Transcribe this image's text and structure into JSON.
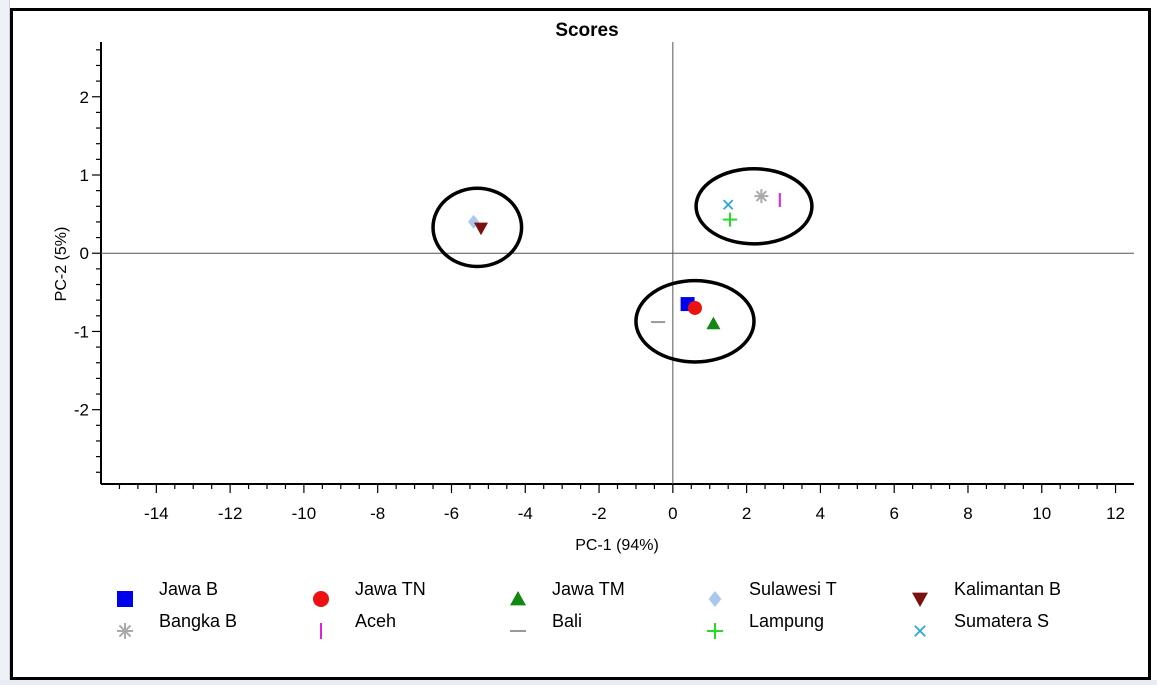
{
  "chart_data": {
    "type": "scatter",
    "title": "Scores",
    "xlabel": "PC-1 (94%)",
    "ylabel": "PC-2 (5%)",
    "xlim": [
      -15.5,
      12.5
    ],
    "ylim": [
      -2.95,
      2.7
    ],
    "xticks": [
      -14,
      -12,
      -10,
      -8,
      -6,
      -4,
      -2,
      0,
      2,
      4,
      6,
      8,
      10,
      12
    ],
    "yticks": [
      2,
      1,
      0,
      -1,
      -2
    ],
    "grid": false,
    "legend_position": "bottom",
    "series": [
      {
        "name": "Jawa B",
        "marker": "square",
        "color": "#0000ee",
        "x": 0.4,
        "y": -0.65
      },
      {
        "name": "Jawa TN",
        "marker": "circle",
        "color": "#ee1111",
        "x": 0.6,
        "y": -0.7
      },
      {
        "name": "Jawa TM",
        "marker": "triangle-up",
        "color": "#118811",
        "x": 1.1,
        "y": -0.9
      },
      {
        "name": "Sulawesi T",
        "marker": "diamond",
        "color": "#a9c8ee",
        "x": -5.4,
        "y": 0.4
      },
      {
        "name": "Kalimantan B",
        "marker": "triangle-down",
        "color": "#7a1010",
        "x": -5.2,
        "y": 0.32
      },
      {
        "name": "Bangka B",
        "marker": "star",
        "color": "#aaaaaa",
        "x": 2.4,
        "y": 0.73
      },
      {
        "name": "Aceh",
        "marker": "vline",
        "color": "#dd22dd",
        "x": 2.9,
        "y": 0.68
      },
      {
        "name": "Bali",
        "marker": "hline",
        "color": "#999999",
        "x": -0.4,
        "y": -0.88
      },
      {
        "name": "Lampung",
        "marker": "plus",
        "color": "#22dd22",
        "x": 1.55,
        "y": 0.43
      },
      {
        "name": "Sumatera S",
        "marker": "x",
        "color": "#2aa8d8",
        "x": 1.5,
        "y": 0.62
      }
    ],
    "annotations": [
      {
        "type": "ellipse",
        "cx": -5.3,
        "cy": 0.33,
        "rx": 1.2,
        "ry": 0.5
      },
      {
        "type": "ellipse",
        "cx": 0.6,
        "cy": -0.87,
        "rx": 1.6,
        "ry": 0.52
      },
      {
        "type": "ellipse",
        "cx": 2.2,
        "cy": 0.6,
        "rx": 1.57,
        "ry": 0.48
      }
    ]
  }
}
